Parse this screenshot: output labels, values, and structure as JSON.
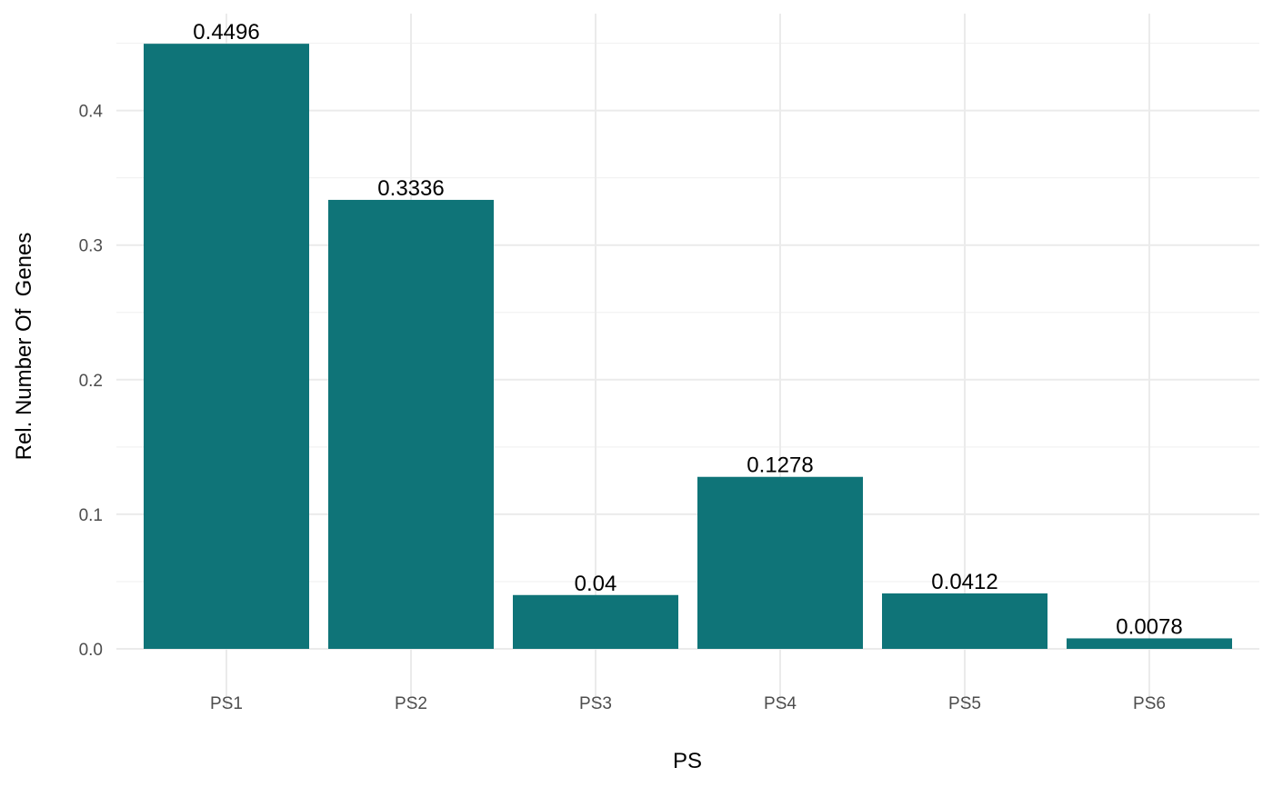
{
  "chart_data": {
    "type": "bar",
    "categories": [
      "PS1",
      "PS2",
      "PS3",
      "PS4",
      "PS5",
      "PS6"
    ],
    "values": [
      0.4496,
      0.3336,
      0.04,
      0.1278,
      0.0412,
      0.0078
    ],
    "data_labels": [
      "0.4496",
      "0.3336",
      "0.04",
      "0.1278",
      "0.0412",
      "0.0078"
    ],
    "title": "",
    "xlabel": "PS",
    "ylabel": "Rel. Number Of  Genes",
    "ylim": [
      0,
      0.4721
    ],
    "yticks": [
      0.0,
      0.1,
      0.2,
      0.3,
      0.4
    ],
    "ytick_labels": [
      "0.0",
      "0.1",
      "0.2",
      "0.3",
      "0.4"
    ],
    "grid": true,
    "legend": "none",
    "colors": {
      "bar": "#0f7478"
    }
  }
}
